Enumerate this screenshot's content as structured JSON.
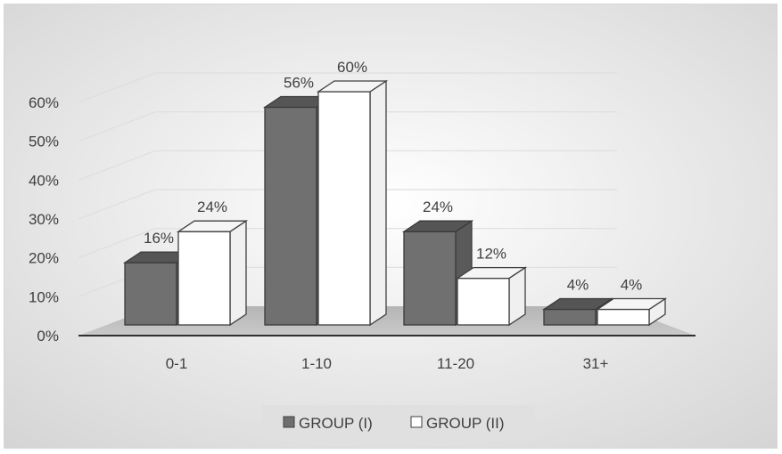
{
  "chart_data": {
    "type": "bar",
    "title": "",
    "xlabel": "",
    "ylabel": "",
    "categories": [
      "0-1",
      "1-10",
      "11-20",
      "31+"
    ],
    "series": [
      {
        "name": "GROUP (I)",
        "values": [
          16,
          56,
          24,
          4
        ],
        "labels": [
          "16%",
          "56%",
          "24%",
          "4%"
        ],
        "color": "#6e6e6e"
      },
      {
        "name": "GROUP (II)",
        "values": [
          24,
          60,
          12,
          4
        ],
        "labels": [
          "24%",
          "60%",
          "12%",
          "4%"
        ],
        "color": "#ffffff"
      }
    ],
    "y_ticks": [
      "0%",
      "10%",
      "20%",
      "30%",
      "40%",
      "50%",
      "60%"
    ],
    "ylim": [
      0,
      60
    ],
    "grid": true,
    "legend_position": "bottom",
    "style": "3d-clustered-column"
  }
}
